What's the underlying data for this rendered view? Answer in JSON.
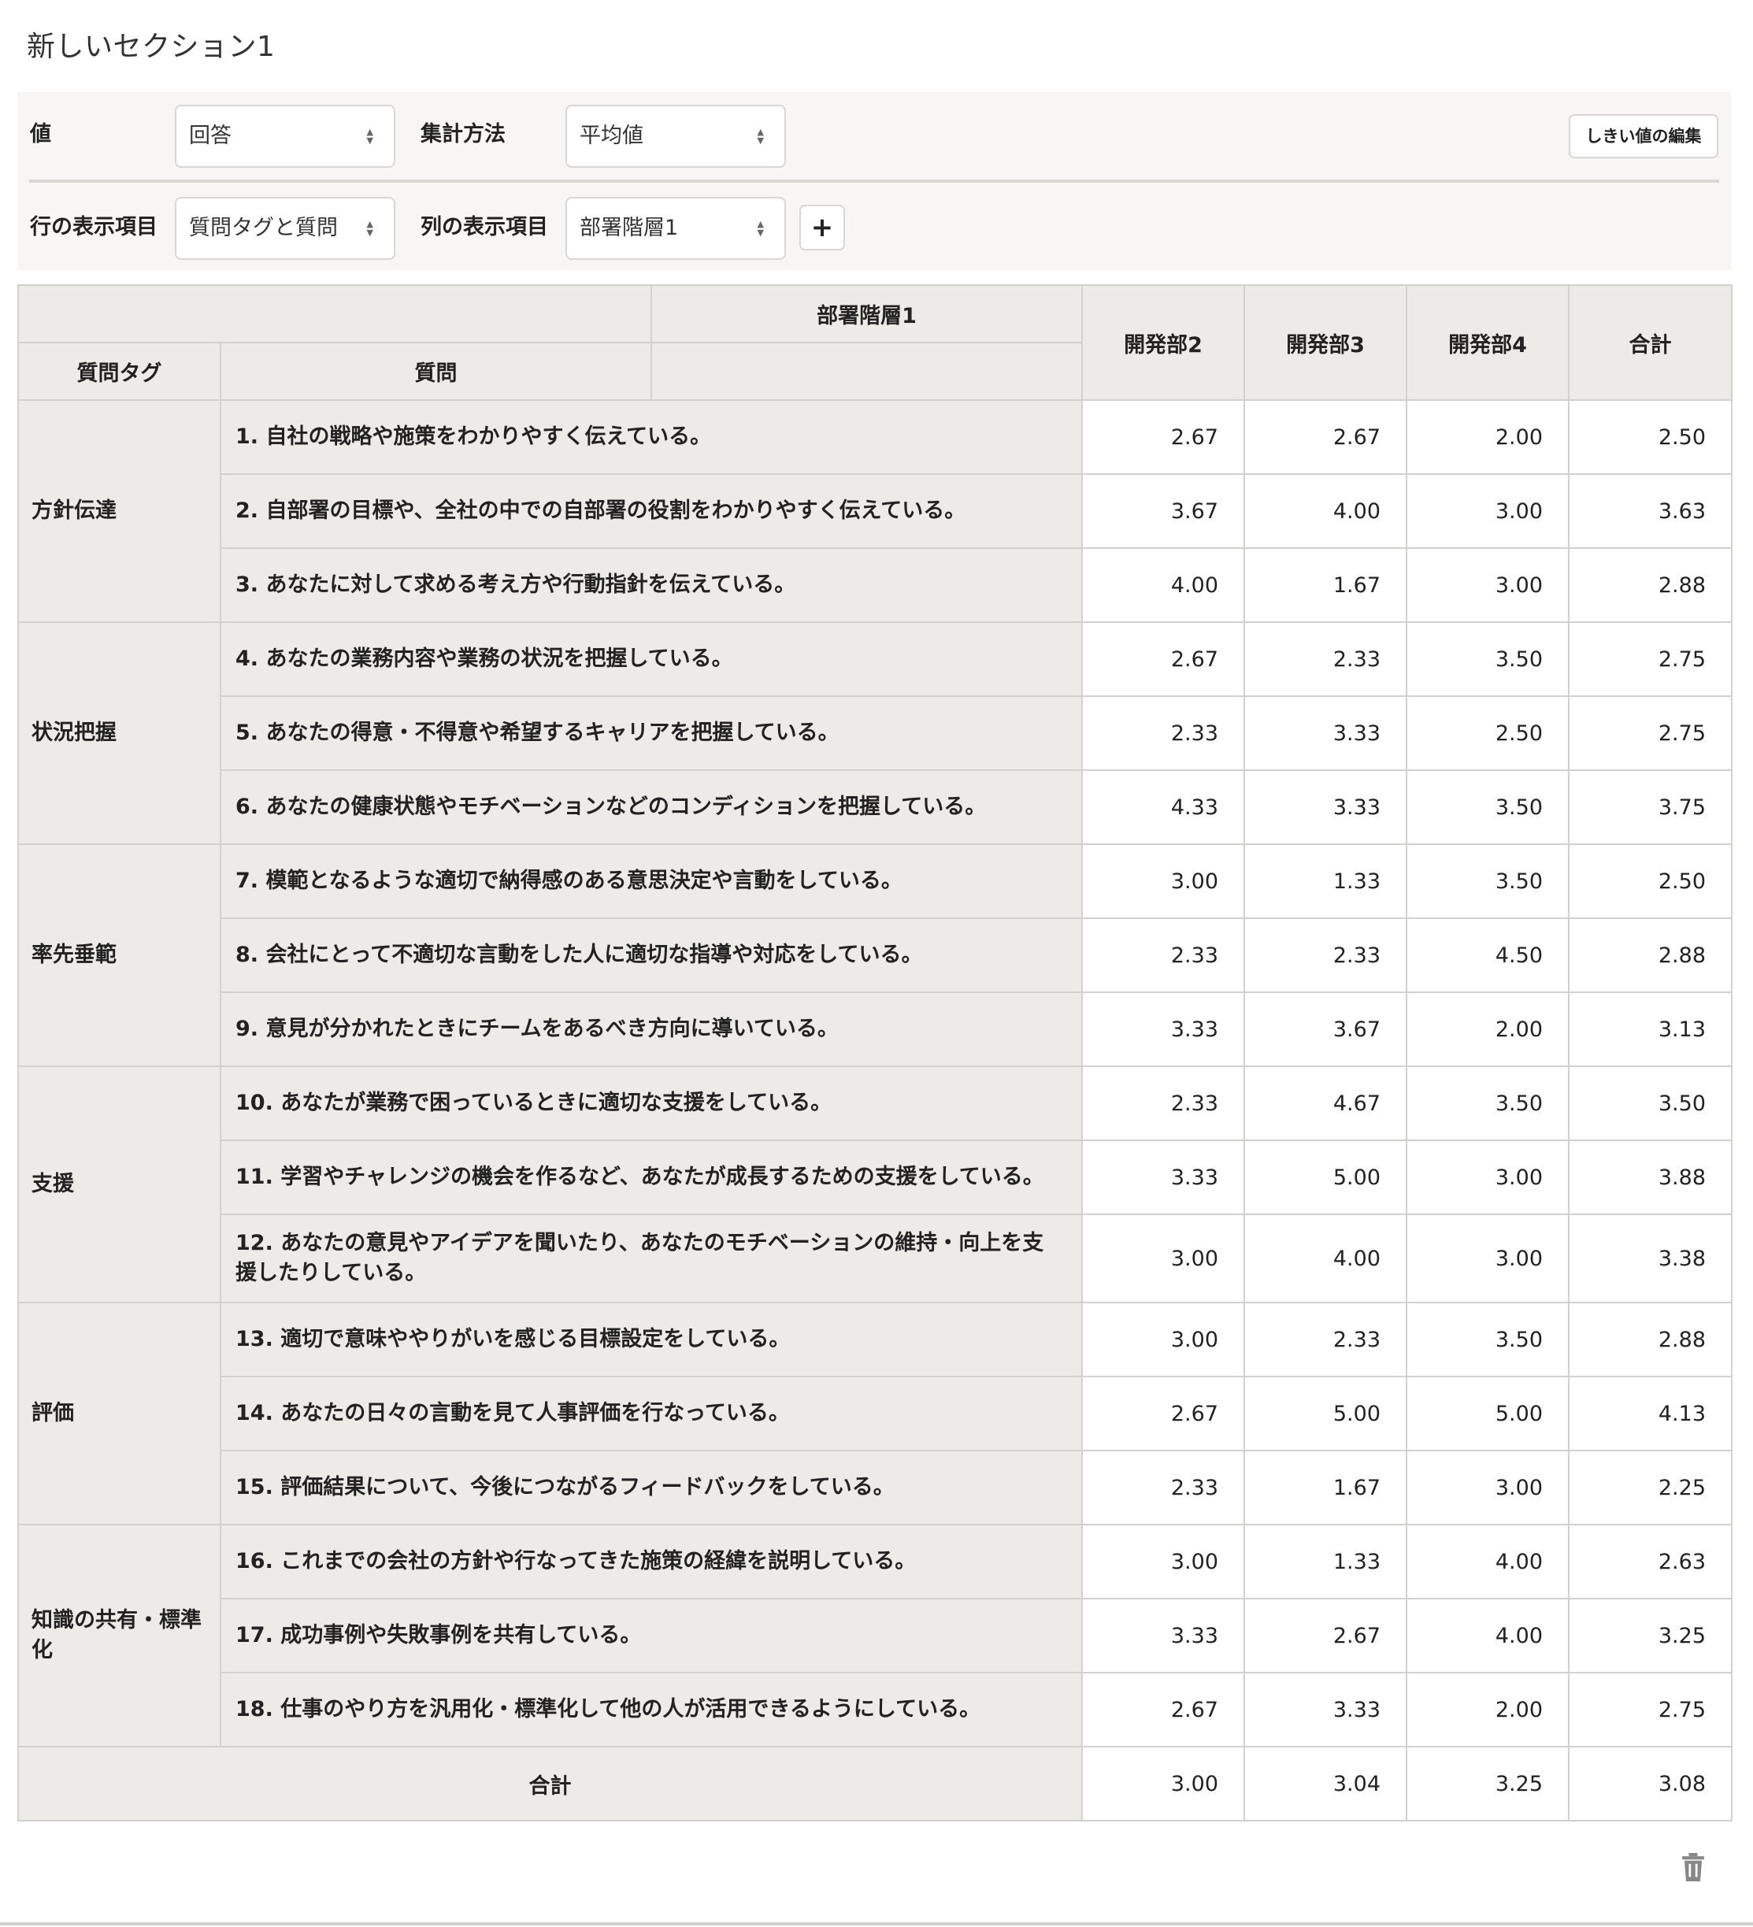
{
  "section": {
    "title": "新しいセクション1"
  },
  "controls": {
    "value_label": "値",
    "value_selected": "回答",
    "aggregation_label": "集計方法",
    "aggregation_selected": "平均値",
    "row_label": "行の表示項目",
    "row_selected": "質問タグと質問",
    "column_label": "列の表示項目",
    "column_selected": "部署階層1",
    "add_label": "+",
    "threshold_button": "しきい値の編集"
  },
  "table": {
    "group_header": "部署階層1",
    "tag_header": "質問タグ",
    "question_header": "質問",
    "columns": [
      "開発部2",
      "開発部3",
      "開発部4",
      "合計"
    ],
    "groups": [
      {
        "tag": "方針伝達",
        "rows": [
          {
            "q": "1. 自社の戦略や施策をわかりやすく伝えている。",
            "v": [
              "2.67",
              "2.67",
              "2.00",
              "2.50"
            ]
          },
          {
            "q": "2. 自部署の目標や、全社の中での自部署の役割をわかりやすく伝えている。",
            "v": [
              "3.67",
              "4.00",
              "3.00",
              "3.63"
            ]
          },
          {
            "q": "3. あなたに対して求める考え方や行動指針を伝えている。",
            "v": [
              "4.00",
              "1.67",
              "3.00",
              "2.88"
            ]
          }
        ]
      },
      {
        "tag": "状況把握",
        "rows": [
          {
            "q": "4. あなたの業務内容や業務の状況を把握している。",
            "v": [
              "2.67",
              "2.33",
              "3.50",
              "2.75"
            ]
          },
          {
            "q": "5. あなたの得意・不得意や希望するキャリアを把握している。",
            "v": [
              "2.33",
              "3.33",
              "2.50",
              "2.75"
            ]
          },
          {
            "q": "6. あなたの健康状態やモチベーションなどのコンディションを把握している。",
            "v": [
              "4.33",
              "3.33",
              "3.50",
              "3.75"
            ]
          }
        ]
      },
      {
        "tag": "率先垂範",
        "rows": [
          {
            "q": "7. 模範となるような適切で納得感のある意思決定や言動をしている。",
            "v": [
              "3.00",
              "1.33",
              "3.50",
              "2.50"
            ]
          },
          {
            "q": "8. 会社にとって不適切な言動をした人に適切な指導や対応をしている。",
            "v": [
              "2.33",
              "2.33",
              "4.50",
              "2.88"
            ]
          },
          {
            "q": "9. 意見が分かれたときにチームをあるべき方向に導いている。",
            "v": [
              "3.33",
              "3.67",
              "2.00",
              "3.13"
            ]
          }
        ]
      },
      {
        "tag": "支援",
        "rows": [
          {
            "q": "10. あなたが業務で困っているときに適切な支援をしている。",
            "v": [
              "2.33",
              "4.67",
              "3.50",
              "3.50"
            ]
          },
          {
            "q": "11. 学習やチャレンジの機会を作るなど、あなたが成長するための支援をしている。",
            "v": [
              "3.33",
              "5.00",
              "3.00",
              "3.88"
            ]
          },
          {
            "q": "12. あなたの意見やアイデアを聞いたり、あなたのモチベーションの維持・向上を支援したりしている。",
            "v": [
              "3.00",
              "4.00",
              "3.00",
              "3.38"
            ]
          }
        ]
      },
      {
        "tag": "評価",
        "rows": [
          {
            "q": "13. 適切で意味ややりがいを感じる目標設定をしている。",
            "v": [
              "3.00",
              "2.33",
              "3.50",
              "2.88"
            ]
          },
          {
            "q": "14. あなたの日々の言動を見て人事評価を行なっている。",
            "v": [
              "2.67",
              "5.00",
              "5.00",
              "4.13"
            ]
          },
          {
            "q": "15. 評価結果について、今後につながるフィードバックをしている。",
            "v": [
              "2.33",
              "1.67",
              "3.00",
              "2.25"
            ]
          }
        ]
      },
      {
        "tag": "知識の共有・標準化",
        "rows": [
          {
            "q": "16. これまでの会社の方針や行なってきた施策の経緯を説明している。",
            "v": [
              "3.00",
              "1.33",
              "4.00",
              "2.63"
            ]
          },
          {
            "q": "17. 成功事例や失敗事例を共有している。",
            "v": [
              "3.33",
              "2.67",
              "4.00",
              "3.25"
            ]
          },
          {
            "q": "18. 仕事のやり方を汎用化・標準化して他の人が活用できるようにしている。",
            "v": [
              "2.67",
              "3.33",
              "2.00",
              "2.75"
            ]
          }
        ]
      }
    ],
    "total_label": "合計",
    "totals": [
      "3.00",
      "3.04",
      "3.25",
      "3.08"
    ]
  },
  "icons": {
    "delete": "trash-icon",
    "select": "chevron-updown-icon"
  }
}
